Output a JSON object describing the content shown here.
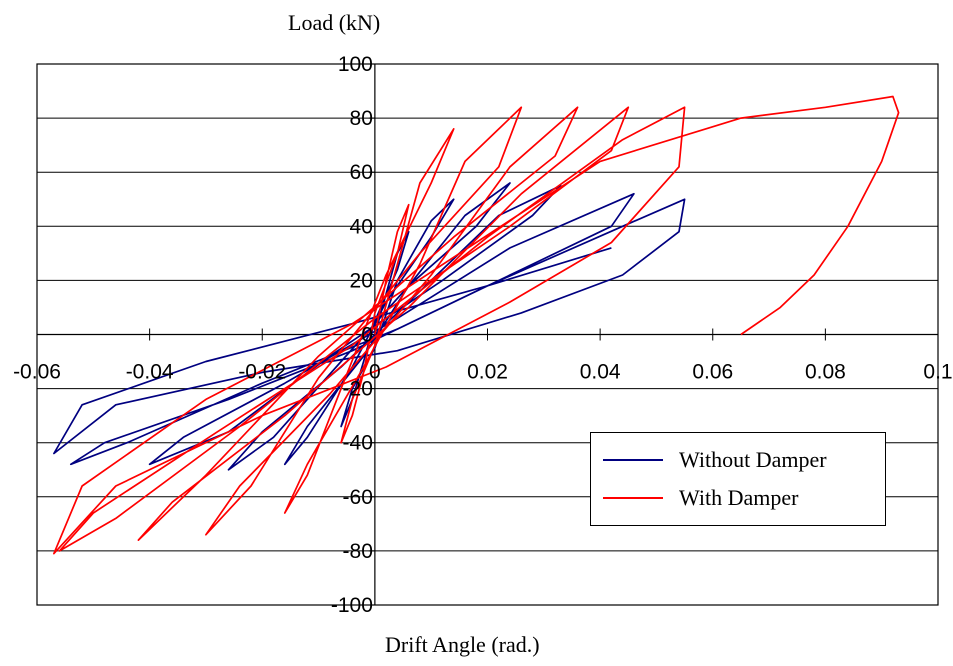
{
  "chart_data": {
    "type": "line",
    "xlabel": "Drift Angle (rad.)",
    "ylabel": "Load (kN)",
    "xlim": [
      -0.06,
      0.1
    ],
    "ylim": [
      -100,
      100
    ],
    "xticks": [
      "-0.06",
      "-0.04",
      "-0.02",
      "0",
      "0.02",
      "0.04",
      "0.06",
      "0.08",
      "0.1"
    ],
    "yticks": [
      "-100",
      "-80",
      "-60",
      "-40",
      "-20",
      "0",
      "20",
      "40",
      "60",
      "80",
      "100"
    ],
    "grid": "horizontal",
    "legend_position": "bottom-right",
    "series": [
      {
        "name": "Without Damper",
        "color": "#000080",
        "points": [
          [
            0,
            0
          ],
          [
            0.002,
            15
          ],
          [
            0.004,
            30
          ],
          [
            0.006,
            38
          ],
          [
            0.004,
            24
          ],
          [
            0.0,
            5
          ],
          [
            -0.002,
            -10
          ],
          [
            -0.004,
            -24
          ],
          [
            -0.006,
            -34
          ],
          [
            -0.004,
            -20
          ],
          [
            0,
            -5
          ],
          [
            0.004,
            20
          ],
          [
            0.01,
            42
          ],
          [
            0.014,
            50
          ],
          [
            0.01,
            36
          ],
          [
            0.002,
            12
          ],
          [
            -0.004,
            -12
          ],
          [
            -0.012,
            -38
          ],
          [
            -0.016,
            -48
          ],
          [
            -0.012,
            -34
          ],
          [
            -0.002,
            -8
          ],
          [
            0.006,
            18
          ],
          [
            0.016,
            44
          ],
          [
            0.024,
            56
          ],
          [
            0.018,
            40
          ],
          [
            0.006,
            18
          ],
          [
            -0.006,
            -10
          ],
          [
            -0.018,
            -38
          ],
          [
            -0.026,
            -50
          ],
          [
            -0.02,
            -36
          ],
          [
            -0.006,
            -12
          ],
          [
            0.008,
            16
          ],
          [
            0.022,
            44
          ],
          [
            0.033,
            55
          ],
          [
            0.028,
            44
          ],
          [
            0.012,
            20
          ],
          [
            -0.008,
            -8
          ],
          [
            -0.026,
            -36
          ],
          [
            -0.04,
            -48
          ],
          [
            -0.034,
            -38
          ],
          [
            -0.016,
            -18
          ],
          [
            0.004,
            6
          ],
          [
            0.024,
            32
          ],
          [
            0.046,
            52
          ],
          [
            0.042,
            40
          ],
          [
            0.026,
            24
          ],
          [
            0.004,
            2
          ],
          [
            -0.02,
            -18
          ],
          [
            -0.044,
            -40
          ],
          [
            -0.054,
            -48
          ],
          [
            -0.048,
            -40
          ],
          [
            -0.026,
            -24
          ],
          [
            -0.004,
            -6
          ],
          [
            0.02,
            18
          ],
          [
            0.044,
            40
          ],
          [
            0.055,
            50
          ],
          [
            0.054,
            38
          ],
          [
            0.044,
            22
          ],
          [
            0.026,
            8
          ],
          [
            0.004,
            -6
          ],
          [
            -0.02,
            -14
          ],
          [
            -0.046,
            -26
          ],
          [
            -0.057,
            -44
          ],
          [
            -0.052,
            -26
          ],
          [
            -0.03,
            -10
          ],
          [
            -0.004,
            4
          ],
          [
            0.02,
            18
          ],
          [
            0.042,
            32
          ]
        ]
      },
      {
        "name": "With Damper",
        "color": "#ff0000",
        "points": [
          [
            0,
            0
          ],
          [
            0.002,
            20
          ],
          [
            0.004,
            38
          ],
          [
            0.006,
            48
          ],
          [
            0.004,
            30
          ],
          [
            0,
            8
          ],
          [
            -0.002,
            -14
          ],
          [
            -0.004,
            -30
          ],
          [
            -0.006,
            -40
          ],
          [
            -0.004,
            -24
          ],
          [
            0,
            -4
          ],
          [
            0.004,
            26
          ],
          [
            0.008,
            56
          ],
          [
            0.014,
            76
          ],
          [
            0.01,
            56
          ],
          [
            0.002,
            22
          ],
          [
            -0.006,
            -20
          ],
          [
            -0.012,
            -52
          ],
          [
            -0.016,
            -66
          ],
          [
            -0.012,
            -48
          ],
          [
            -0.002,
            -12
          ],
          [
            0.008,
            26
          ],
          [
            0.016,
            64
          ],
          [
            0.026,
            84
          ],
          [
            0.022,
            62
          ],
          [
            0.008,
            30
          ],
          [
            -0.01,
            -16
          ],
          [
            -0.022,
            -56
          ],
          [
            -0.03,
            -74
          ],
          [
            -0.024,
            -56
          ],
          [
            -0.008,
            -22
          ],
          [
            0.01,
            22
          ],
          [
            0.024,
            62
          ],
          [
            0.036,
            84
          ],
          [
            0.032,
            66
          ],
          [
            0.014,
            36
          ],
          [
            -0.01,
            -8
          ],
          [
            -0.03,
            -52
          ],
          [
            -0.042,
            -76
          ],
          [
            -0.036,
            -62
          ],
          [
            -0.016,
            -30
          ],
          [
            0.006,
            10
          ],
          [
            0.026,
            52
          ],
          [
            0.045,
            84
          ],
          [
            0.042,
            68
          ],
          [
            0.024,
            40
          ],
          [
            0.0,
            6
          ],
          [
            -0.024,
            -34
          ],
          [
            -0.046,
            -68
          ],
          [
            -0.056,
            -80
          ],
          [
            -0.05,
            -66
          ],
          [
            -0.028,
            -36
          ],
          [
            -0.004,
            -4
          ],
          [
            0.02,
            36
          ],
          [
            0.044,
            72
          ],
          [
            0.055,
            84
          ],
          [
            0.054,
            62
          ],
          [
            0.042,
            34
          ],
          [
            0.024,
            12
          ],
          [
            0.002,
            -12
          ],
          [
            -0.02,
            -30
          ],
          [
            -0.046,
            -56
          ],
          [
            -0.057,
            -81
          ],
          [
            -0.052,
            -56
          ],
          [
            -0.03,
            -24
          ],
          [
            -0.004,
            4
          ],
          [
            0.018,
            34
          ],
          [
            0.04,
            64
          ],
          [
            0.065,
            80
          ],
          [
            0.08,
            84
          ],
          [
            0.092,
            88
          ],
          [
            0.093,
            82
          ],
          [
            0.09,
            64
          ],
          [
            0.084,
            40
          ],
          [
            0.078,
            22
          ],
          [
            0.072,
            10
          ],
          [
            0.065,
            0
          ]
        ]
      }
    ]
  }
}
